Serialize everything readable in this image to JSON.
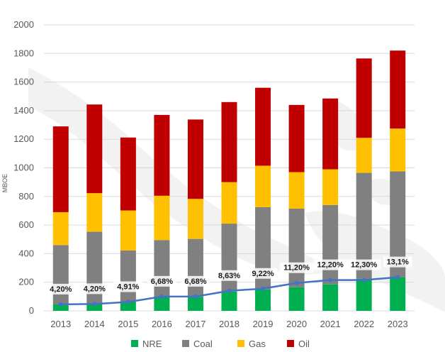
{
  "chart_data": {
    "type": "bar",
    "stacked": true,
    "ylabel": "MBOE",
    "ylim": [
      0,
      2000
    ],
    "yticks": [
      0,
      200,
      400,
      600,
      800,
      1000,
      1200,
      1400,
      1600,
      1800,
      2000
    ],
    "grid": true,
    "legend_position": "bottom",
    "categories": [
      "2013",
      "2014",
      "2015",
      "2016",
      "2017",
      "2018",
      "2019",
      "2020",
      "2021",
      "2022",
      "2023"
    ],
    "series": [
      {
        "name": "NRE",
        "color": "#00b050",
        "values": [
          45,
          48,
          62,
          95,
          98,
          135,
          150,
          165,
          185,
          225,
          235
        ]
      },
      {
        "name": "Coal",
        "color": "#808080",
        "values": [
          415,
          505,
          360,
          400,
          405,
          475,
          575,
          550,
          555,
          740,
          740
        ]
      },
      {
        "name": "Gas",
        "color": "#ffc000",
        "values": [
          230,
          270,
          280,
          310,
          280,
          290,
          290,
          255,
          250,
          245,
          300
        ]
      },
      {
        "name": "Oil",
        "color": "#c00000",
        "values": [
          600,
          620,
          510,
          565,
          555,
          560,
          545,
          470,
          495,
          555,
          545
        ]
      }
    ],
    "line": {
      "color": "#4472c4",
      "values": [
        45,
        48,
        62,
        100,
        100,
        140,
        155,
        195,
        215,
        215,
        235
      ]
    },
    "data_labels": [
      "4,20%",
      "4,20%",
      "4,91%",
      "6,68%",
      "6,68%",
      "8,63%",
      "9,22%",
      "11,20%",
      "12,20%",
      "12,30%",
      "13,1%"
    ]
  }
}
